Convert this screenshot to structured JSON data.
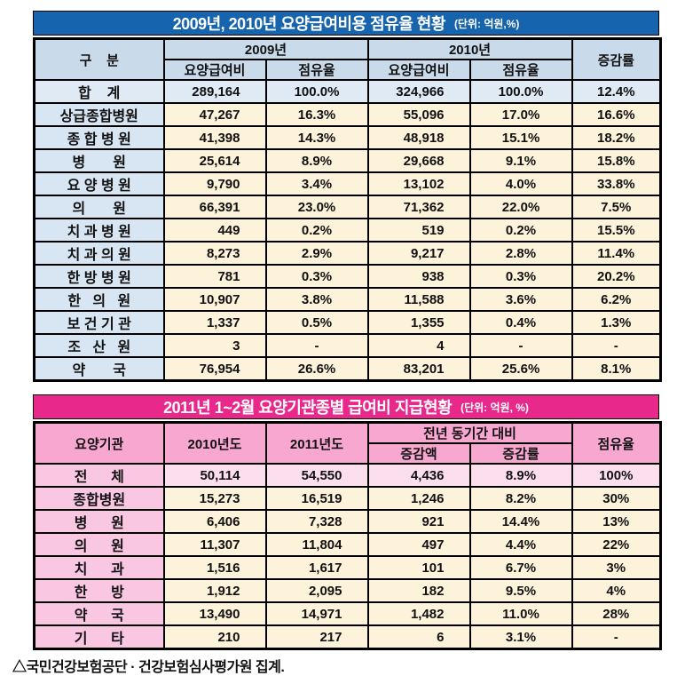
{
  "colors": {
    "table1_title_bg": "#1663ae",
    "table2_title_bg": "#e9288c",
    "table1_header_bg": "#c9daea",
    "table1_label_bg": "#d8e5f2",
    "table1_total_bg": "#dfeaf5",
    "table2_header_bg": "#f8a8d0",
    "table2_label_bg": "#fac7e2",
    "table2_total_bg": "#fcdfee",
    "data_cell_bg": "#fdf3da",
    "title_text": "#ffffff",
    "border": "#000000"
  },
  "table1": {
    "title": "2009년, 2010년 요양급여비용 점유율 현황",
    "unit": "(단위: 억원,%)",
    "corner_header": "구    분",
    "year_2009": "2009년",
    "year_2010": "2010년",
    "sub_headers": [
      "요양급여비",
      "점유율",
      "요양급여비",
      "점유율"
    ],
    "change_header": "증감률",
    "rows": [
      {
        "label": "합    계",
        "total": true,
        "values": [
          "289,164",
          "100.0%",
          "324,966",
          "100.0%",
          "12.4%"
        ]
      },
      {
        "label": "상급종합병원",
        "values": [
          "47,267",
          "16.3%",
          "55,096",
          "17.0%",
          "16.6%"
        ]
      },
      {
        "label": "종 합 병 원",
        "values": [
          "41,398",
          "14.3%",
          "48,918",
          "15.1%",
          "18.2%"
        ]
      },
      {
        "label": "병       원",
        "values": [
          "25,614",
          "8.9%",
          "29,668",
          "9.1%",
          "15.8%"
        ]
      },
      {
        "label": "요 양 병 원",
        "values": [
          "9,790",
          "3.4%",
          "13,102",
          "4.0%",
          "33.8%"
        ]
      },
      {
        "label": "의       원",
        "values": [
          "66,391",
          "23.0%",
          "71,362",
          "22.0%",
          "7.5%"
        ]
      },
      {
        "label": "치 과 병 원",
        "values": [
          "449",
          "0.2%",
          "519",
          "0.2%",
          "15.5%"
        ]
      },
      {
        "label": "치 과 의 원",
        "values": [
          "8,273",
          "2.9%",
          "9,217",
          "2.8%",
          "11.4%"
        ]
      },
      {
        "label": "한 방 병 원",
        "values": [
          "781",
          "0.3%",
          "938",
          "0.3%",
          "20.2%"
        ]
      },
      {
        "label": "한   의   원",
        "values": [
          "10,907",
          "3.8%",
          "11,588",
          "3.6%",
          "6.2%"
        ]
      },
      {
        "label": "보 건 기 관",
        "values": [
          "1,337",
          "0.5%",
          "1,355",
          "0.4%",
          "1.3%"
        ]
      },
      {
        "label": "조   산   원",
        "values": [
          "3",
          "-",
          "4",
          "-",
          "-"
        ]
      },
      {
        "label": "약       국",
        "values": [
          "76,954",
          "26.6%",
          "83,201",
          "25.6%",
          "8.1%"
        ]
      }
    ]
  },
  "table2": {
    "title": "2011년 1~2월 요양기관종별 급여비 지급현황",
    "unit": "(단위: 억원, %)",
    "corner_header": "요양기관",
    "col_2010": "2010년도",
    "col_2011": "2011년도",
    "compare_group": "전년 동기간 대비",
    "compare_sub_headers": [
      "증감액",
      "증감률"
    ],
    "share_header": "점유율",
    "rows": [
      {
        "label": "전      체",
        "total": true,
        "values": [
          "50,114",
          "54,550",
          "4,436",
          "8.9%",
          "100%"
        ]
      },
      {
        "label": "종합병원",
        "values": [
          "15,273",
          "16,519",
          "1,246",
          "8.2%",
          "30%"
        ]
      },
      {
        "label": "병      원",
        "values": [
          "6,406",
          "7,328",
          "921",
          "14.4%",
          "13%"
        ]
      },
      {
        "label": "의      원",
        "values": [
          "11,307",
          "11,804",
          "497",
          "4.4%",
          "22%"
        ]
      },
      {
        "label": "치      과",
        "values": [
          "1,516",
          "1,617",
          "101",
          "6.7%",
          "3%"
        ]
      },
      {
        "label": "한      방",
        "values": [
          "1,912",
          "2,095",
          "182",
          "9.5%",
          "4%"
        ]
      },
      {
        "label": "약      국",
        "values": [
          "13,490",
          "14,971",
          "1,482",
          "11.0%",
          "28%"
        ]
      },
      {
        "label": "기      타",
        "values": [
          "210",
          "217",
          "6",
          "3.1%",
          "-"
        ]
      }
    ]
  },
  "footer_note": "△국민건강보험공단 · 건강보험심사평가원 집계."
}
